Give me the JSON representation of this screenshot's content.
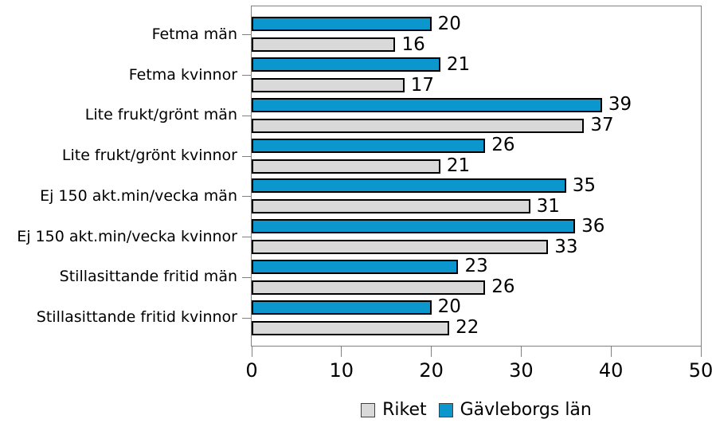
{
  "chart_data": {
    "type": "bar",
    "orientation": "horizontal",
    "title": "",
    "xlabel": "",
    "ylabel": "",
    "categories": [
      "Fetma män",
      "Fetma kvinnor",
      "Lite frukt/grönt män",
      "Lite frukt/grönt kvinnor",
      "Ej 150 akt.min/vecka män",
      "Ej 150 akt.min/vecka kvinnor",
      "Stillasittande fritid män",
      "Stillasittande fritid kvinnor"
    ],
    "series": [
      {
        "name": "Gävleborgs län",
        "color": "#0C96CE",
        "values": [
          20,
          21,
          39,
          26,
          35,
          36,
          23,
          20
        ]
      },
      {
        "name": "Riket",
        "color": "#D9D9D9",
        "values": [
          16,
          17,
          37,
          21,
          31,
          33,
          26,
          22
        ]
      }
    ],
    "value_labels_shown": true,
    "xlim": [
      0,
      50
    ],
    "xticks": [
      0,
      10,
      20,
      30,
      40,
      50
    ],
    "grid": false,
    "legend_position": "bottom",
    "legend_order": [
      "Riket",
      "Gävleborgs län"
    ],
    "colors": {
      "bar_border": "#000000",
      "axis": "#808080",
      "text": "#000000",
      "background": "#FFFFFF"
    }
  }
}
